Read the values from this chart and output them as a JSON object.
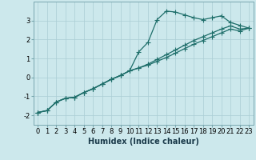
{
  "xlabel": "Humidex (Indice chaleur)",
  "background_color": "#cce8ec",
  "grid_color": "#aacdd4",
  "line_color": "#1e6e6a",
  "x_values": [
    0,
    1,
    2,
    3,
    4,
    5,
    6,
    7,
    8,
    9,
    10,
    11,
    12,
    13,
    14,
    15,
    16,
    17,
    18,
    19,
    20,
    21,
    22,
    23
  ],
  "line1_y": [
    -1.85,
    -1.75,
    -1.3,
    -1.1,
    -1.05,
    -0.8,
    -0.6,
    -0.35,
    -0.1,
    0.1,
    0.35,
    1.35,
    1.85,
    3.05,
    3.5,
    3.45,
    3.3,
    3.15,
    3.05,
    3.15,
    3.25,
    2.9,
    2.75,
    2.6
  ],
  "line2_y": [
    -1.85,
    -1.75,
    -1.3,
    -1.1,
    -1.05,
    -0.8,
    -0.6,
    -0.35,
    -0.1,
    0.1,
    0.35,
    0.5,
    0.7,
    0.95,
    1.2,
    1.45,
    1.7,
    1.95,
    2.15,
    2.35,
    2.55,
    2.72,
    2.55,
    2.6
  ],
  "line3_y": [
    -1.85,
    -1.75,
    -1.3,
    -1.1,
    -1.05,
    -0.8,
    -0.6,
    -0.35,
    -0.1,
    0.1,
    0.35,
    0.5,
    0.65,
    0.85,
    1.05,
    1.28,
    1.52,
    1.75,
    1.95,
    2.15,
    2.35,
    2.55,
    2.45,
    2.6
  ],
  "ylim": [
    -2.5,
    4.0
  ],
  "xlim": [
    -0.5,
    23.5
  ],
  "yticks": [
    -2,
    -1,
    0,
    1,
    2,
    3
  ],
  "xticks": [
    0,
    1,
    2,
    3,
    4,
    5,
    6,
    7,
    8,
    9,
    10,
    11,
    12,
    13,
    14,
    15,
    16,
    17,
    18,
    19,
    20,
    21,
    22,
    23
  ],
  "xlabel_fontsize": 7,
  "tick_fontsize": 6,
  "linewidth": 0.9,
  "markersize": 2.5
}
